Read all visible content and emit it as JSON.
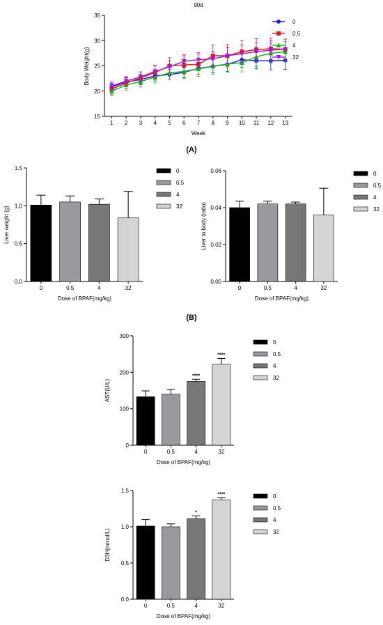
{
  "panels": {
    "A": "(A)",
    "B": "(B)"
  },
  "chart_data": [
    {
      "id": "weight",
      "type": "line",
      "title": "90d",
      "xlabel": "Week",
      "ylabel": "Body Weight(g)",
      "x": [
        1,
        2,
        3,
        4,
        5,
        6,
        7,
        8,
        9,
        10,
        11,
        12,
        13
      ],
      "xlim": [
        0.5,
        13.5
      ],
      "ylim": [
        15,
        35
      ],
      "yticks": [
        15,
        20,
        25,
        30,
        35
      ],
      "legend_position": "right",
      "series": [
        {
          "name": "0",
          "color": "#1f1fdd",
          "marker": "circle",
          "values": [
            20.8,
            21.8,
            22.3,
            23.0,
            23.3,
            23.7,
            24.5,
            24.9,
            25.3,
            26.2,
            26.0,
            26.0,
            26.1
          ],
          "errors": [
            0.8,
            0.9,
            1.0,
            1.0,
            1.0,
            1.0,
            1.2,
            1.3,
            1.4,
            1.5,
            1.6,
            1.8,
            1.8
          ]
        },
        {
          "name": "0.5",
          "color": "#e8141e",
          "marker": "square",
          "values": [
            20.4,
            21.6,
            22.6,
            23.7,
            25.0,
            25.2,
            25.3,
            27.0,
            27.0,
            27.8,
            28.2,
            28.4,
            28.3
          ],
          "errors": [
            1.0,
            1.0,
            1.2,
            1.4,
            1.6,
            1.8,
            2.0,
            2.1,
            2.2,
            2.2,
            2.2,
            2.1,
            2.0
          ]
        },
        {
          "name": "4",
          "color": "#17b317",
          "marker": "triangle-up",
          "values": [
            20.0,
            21.2,
            21.9,
            22.8,
            23.6,
            23.9,
            24.4,
            24.9,
            25.4,
            25.6,
            26.8,
            27.5,
            27.8
          ],
          "errors": [
            0.9,
            1.0,
            1.1,
            1.2,
            1.3,
            1.4,
            1.5,
            1.6,
            1.7,
            1.8,
            1.9,
            2.0,
            2.0
          ]
        },
        {
          "name": "32",
          "color": "#a020d0",
          "marker": "triangle-down",
          "values": [
            21.0,
            22.0,
            22.8,
            23.9,
            24.8,
            25.9,
            26.2,
            26.4,
            27.0,
            27.4,
            27.8,
            28.1,
            28.3
          ],
          "errors": [
            0.8,
            0.9,
            1.0,
            1.1,
            1.2,
            1.3,
            1.4,
            1.5,
            1.6,
            1.7,
            1.8,
            1.9,
            2.0
          ]
        }
      ]
    },
    {
      "id": "liver",
      "type": "bar",
      "xlabel": "Dose of BPAF(mg/kg)",
      "ylabel": "Liver weight (g)",
      "categories": [
        "0",
        "0.5",
        "4",
        "32"
      ],
      "values": [
        1.01,
        1.05,
        1.02,
        0.84
      ],
      "errors": [
        0.13,
        0.08,
        0.07,
        0.35
      ],
      "annotations": [
        "",
        "",
        "",
        ""
      ],
      "ylim": [
        0,
        1.5
      ],
      "yticks": [
        "0.0",
        "0.5",
        "1.0",
        "1.5"
      ],
      "legend_position": "right"
    },
    {
      "id": "ratio",
      "type": "bar",
      "xlabel": "Dose of BPAF(mg/kg)",
      "ylabel": "Liver to body (ratio)",
      "categories": [
        "0",
        "0.5",
        "4",
        "32"
      ],
      "values": [
        0.04,
        0.042,
        0.042,
        0.036
      ],
      "errors": [
        0.0035,
        0.0015,
        0.001,
        0.0145
      ],
      "annotations": [
        "",
        "",
        "",
        ""
      ],
      "ylim": [
        0,
        0.06
      ],
      "yticks": [
        "0.00",
        "0.02",
        "0.04",
        "0.06"
      ],
      "legend_position": "right"
    },
    {
      "id": "ast",
      "type": "bar",
      "xlabel": "Dose of BPAF(mg/kg)",
      "ylabel": "AST(U/L)",
      "categories": [
        "0",
        "0.5",
        "4",
        "32"
      ],
      "values": [
        133,
        140,
        175,
        222
      ],
      "errors": [
        16,
        13,
        6,
        16
      ],
      "annotations": [
        "",
        "",
        "****",
        "****"
      ],
      "ylim": [
        0,
        300
      ],
      "yticks": [
        "0",
        "100",
        "200",
        "300"
      ],
      "legend_position": "right"
    },
    {
      "id": "dsh",
      "type": "bar",
      "xlabel": "Dose of BPAF(mg/kg)",
      "ylabel": "D3H(mmol/L)",
      "categories": [
        "0",
        "0.5",
        "4",
        "32"
      ],
      "values": [
        1.01,
        1.0,
        1.11,
        1.37
      ],
      "errors": [
        0.09,
        0.04,
        0.04,
        0.03
      ],
      "annotations": [
        "",
        "",
        "*",
        "****"
      ],
      "ylim": [
        0,
        1.5
      ],
      "yticks": [
        "0.0",
        "0.5",
        "1.0",
        "1.5"
      ],
      "legend_position": "right"
    }
  ],
  "colors": {
    "bar_fills": [
      "#000000",
      "#9a9a9e",
      "#777777",
      "#d4d4d4"
    ],
    "axis": "#000000"
  }
}
